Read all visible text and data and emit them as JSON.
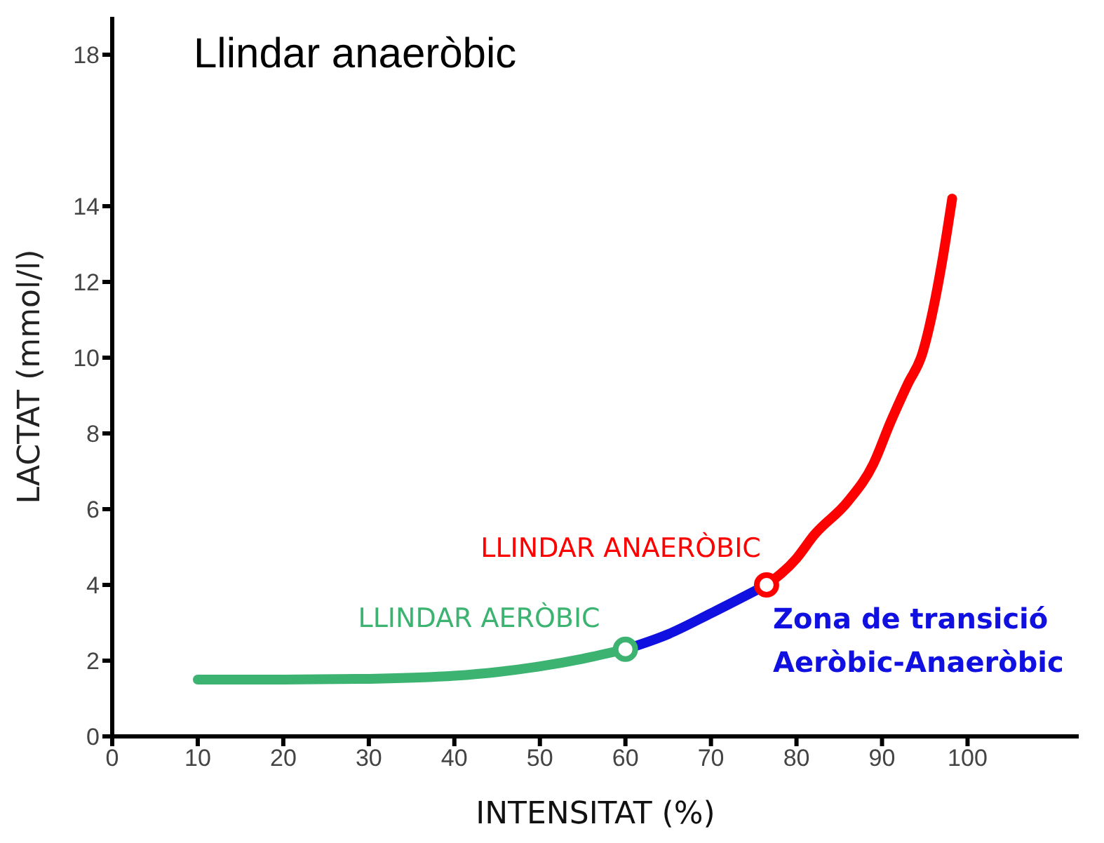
{
  "chart_data": {
    "type": "line",
    "title": "Llindar anaeròbic",
    "xlabel": "INTENSITAT (%)",
    "ylabel": "LACTAT (mmol/l)",
    "xlim": [
      0,
      113
    ],
    "xticks": [
      0,
      10,
      20,
      30,
      40,
      50,
      60,
      70,
      80,
      90,
      100
    ],
    "ylim": [
      0,
      19
    ],
    "yticks": [
      0,
      2,
      4,
      6,
      8,
      10,
      12,
      14,
      18
    ],
    "grid": false,
    "line_style": "solid",
    "series": [
      {
        "color": "#3cb371",
        "x": [
          10,
          20,
          30,
          40,
          45,
          50,
          55,
          60
        ],
        "values": [
          1.5,
          1.5,
          1.52,
          1.6,
          1.7,
          1.85,
          2.05,
          2.3
        ]
      },
      {
        "color": "#1010e0",
        "x": [
          60,
          65,
          70,
          76.5
        ],
        "values": [
          2.3,
          2.7,
          3.25,
          4.0
        ]
      },
      {
        "color": "#ff0000",
        "x": [
          76.5,
          80,
          82,
          86,
          89,
          91,
          93,
          94.7,
          96,
          97,
          98.2
        ],
        "values": [
          4.0,
          4.7,
          5.3,
          6.2,
          7.2,
          8.3,
          9.3,
          10.1,
          11.3,
          12.5,
          14.2
        ]
      },
      {
        "type": "scatter",
        "marker": "circle",
        "color": "#3cb371",
        "x": [
          60
        ],
        "values": [
          2.3
        ]
      },
      {
        "type": "scatter",
        "marker": "circle",
        "color": "#ff0000",
        "x": [
          76.5
        ],
        "values": [
          4.0
        ]
      }
    ],
    "annotations": [
      {
        "text": "LLINDAR AERÒBIC",
        "x": 60,
        "y": 2.3
      },
      {
        "text": "LLINDAR ANAERÒBIC",
        "x": 76.5,
        "y": 4.0
      },
      "Zona de transició\nAeròbic-Anaeròbic"
    ]
  }
}
